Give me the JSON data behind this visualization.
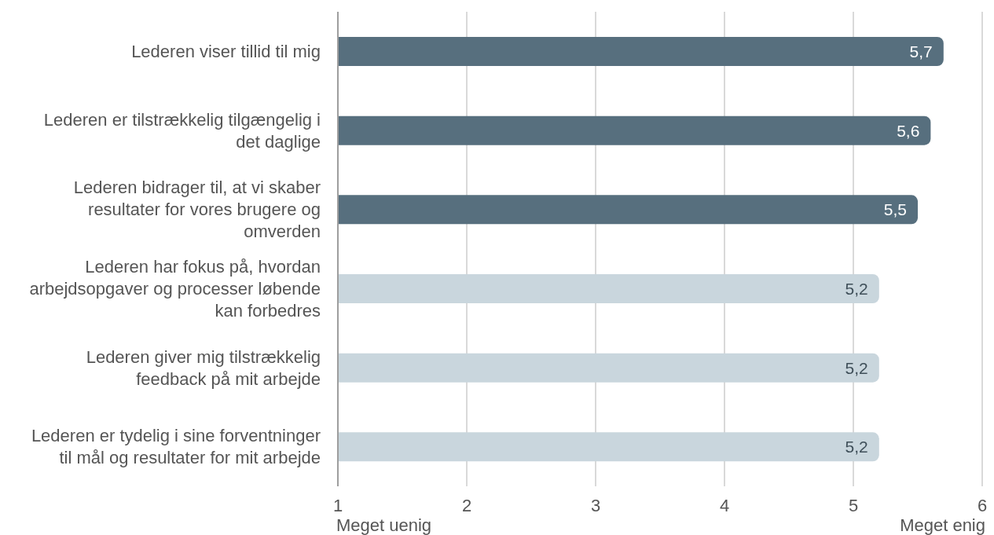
{
  "chart_data": {
    "type": "bar",
    "orientation": "horizontal",
    "categories": [
      "Lederen viser tillid til mig",
      "Lederen er tilstrækkelig tilgængelig i det daglige",
      "Lederen bidrager til, at vi skaber resultater for vores brugere og omverden",
      "Lederen har fokus på, hvordan arbejdsopgaver og processer løbende kan forbedres",
      "Lederen giver mig tilstrækkelig feedback på mit arbejde",
      "Lederen er tydelig i sine forventninger til mål og resultater for mit arbejde"
    ],
    "values": [
      5.7,
      5.6,
      5.5,
      5.2,
      5.2,
      5.2
    ],
    "colors": [
      "#576f7e",
      "#576f7e",
      "#576f7e",
      "#c9d6dd",
      "#c9d6dd",
      "#c9d6dd"
    ],
    "value_labels": [
      "5,7",
      "5,6",
      "5,5",
      "5,2",
      "5,2",
      "5,2"
    ],
    "xlim": [
      1,
      6
    ],
    "xticks": [
      1,
      2,
      3,
      4,
      5,
      6
    ],
    "grid": "x",
    "annotations": [
      "Meget uenig",
      "Meget enig"
    ]
  }
}
